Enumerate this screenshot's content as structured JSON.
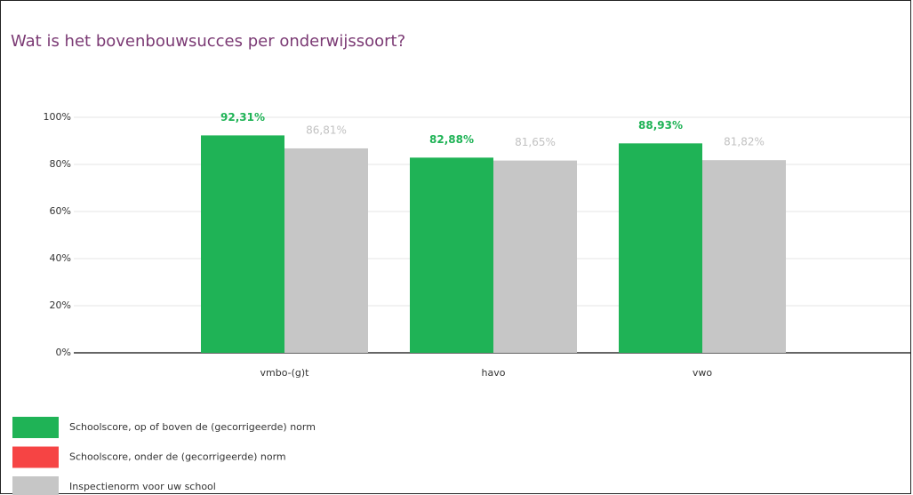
{
  "chart_data": {
    "type": "bar",
    "title": "Wat is het bovenbouwsucces per onderwijssoort?",
    "categories": [
      "vmbo-(g)t",
      "havo",
      "vwo"
    ],
    "series": [
      {
        "name": "Schoolscore, op of boven de (gecorrigeerde) norm",
        "color": "#1fb356",
        "values": [
          92.31,
          82.88,
          88.93
        ],
        "value_labels": [
          "92,31%",
          "82,88%",
          "88,93%"
        ],
        "label_color": "#1fb356"
      },
      {
        "name": "Schoolscore, onder de (gecorrigeerde) norm",
        "color": "#f64444",
        "values": [
          null,
          null,
          null
        ]
      },
      {
        "name": "Inspectienorm voor uw school",
        "color": "#c6c6c6",
        "values": [
          86.81,
          81.65,
          81.82
        ],
        "value_labels": [
          "86,81%",
          "81,65%",
          "81,82%"
        ],
        "label_color": "#c2c2c2"
      }
    ],
    "ylim": [
      0,
      100
    ],
    "yticks": [
      {
        "value": 0,
        "label": "0%"
      },
      {
        "value": 20,
        "label": "20%"
      },
      {
        "value": 40,
        "label": "40%"
      },
      {
        "value": 60,
        "label": "60%"
      },
      {
        "value": 80,
        "label": "80%"
      },
      {
        "value": 100,
        "label": "100%"
      }
    ],
    "grid": true
  }
}
